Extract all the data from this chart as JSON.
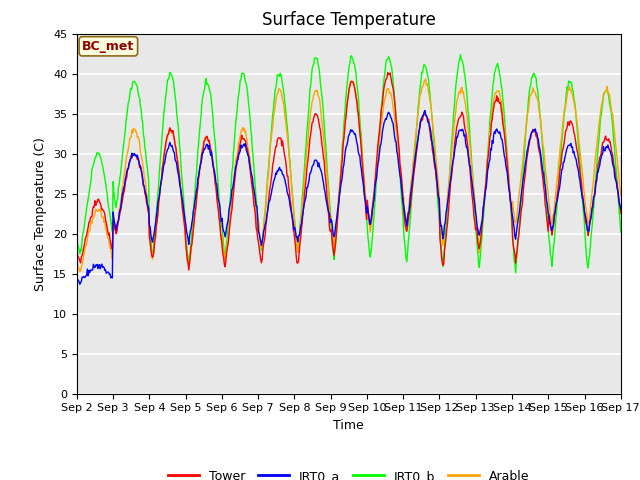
{
  "title": "Surface Temperature",
  "xlabel": "Time",
  "ylabel": "Surface Temperature (C)",
  "annotation": "BC_met",
  "ylim": [
    0,
    45
  ],
  "series": [
    "Tower",
    "IRT0_a",
    "IRT0_b",
    "Arable"
  ],
  "colors": [
    "red",
    "blue",
    "lime",
    "orange"
  ],
  "plot_bg_color": "#e8e8e8",
  "grid_color": "white",
  "title_fontsize": 12,
  "label_fontsize": 9,
  "tick_fontsize": 8,
  "legend_fontsize": 9,
  "x_tick_labels": [
    "Sep 2",
    "Sep 3",
    "Sep 4",
    "Sep 5",
    "Sep 6",
    "Sep 7",
    "Sep 8",
    "Sep 9",
    "Sep 10",
    "Sep 11",
    "Sep 12",
    "Sep 13",
    "Sep 14",
    "Sep 15",
    "Sep 16",
    "Sep 17"
  ]
}
